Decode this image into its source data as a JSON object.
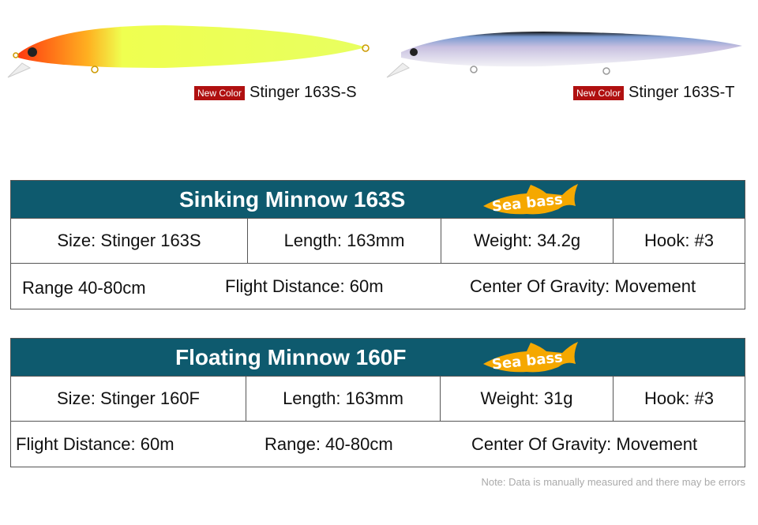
{
  "products": [
    {
      "badge": "New Color",
      "name": "Stinger 163S-S"
    },
    {
      "badge": "New Color",
      "name": "Stinger 163S-T"
    }
  ],
  "tables": [
    {
      "title": "Sinking Minnow 163S",
      "fish_label": "Sea bass",
      "row1": [
        "Size: Stinger 163S",
        "Length: 163mm",
        "Weight: 34.2g",
        "Hook: #3"
      ],
      "row2": [
        "Range 40-80cm",
        "Flight Distance: 60m",
        "Center Of Gravity: Movement"
      ]
    },
    {
      "title": "Floating Minnow 160F",
      "fish_label": "Sea bass",
      "row1": [
        "Size: Stinger 160F",
        "Length: 163mm",
        "Weight: 31g",
        "Hook: #3"
      ],
      "row2": [
        "Flight Distance: 60m",
        "Range: 40-80cm",
        "Center Of Gravity: Movement"
      ]
    }
  ],
  "note": "Note: Data is manually measured and there may be errors",
  "colors": {
    "header": "#0e5a6e",
    "fish": "#f5a800",
    "badge": "#b01010"
  }
}
